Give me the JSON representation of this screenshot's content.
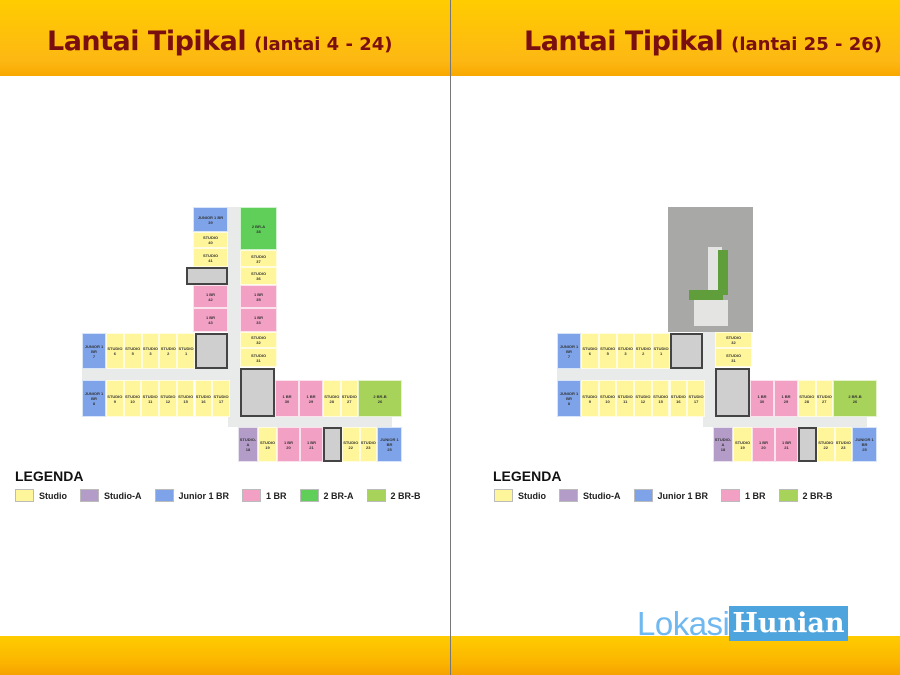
{
  "colors": {
    "studio": "#fff59a",
    "studio-a": "#b39dc8",
    "junior": "#7ea3e8",
    "1br": "#f2a0c4",
    "2br-a": "#5fcf5a",
    "2br-b": "#a8d35a",
    "header": "#fdb813",
    "title": "#7a0f0f"
  },
  "plans": [
    {
      "title": "Lantai Tipikal",
      "subtitle": "(lantai 4 - 24)",
      "legend_title": "LEGENDA",
      "legend": [
        {
          "label": "Studio",
          "type": "studio"
        },
        {
          "label": "Studio-A",
          "type": "studio-a"
        },
        {
          "label": "Junior 1 BR",
          "type": "junior"
        },
        {
          "label": "1 BR",
          "type": "1br"
        },
        {
          "label": "2 BR-A",
          "type": "2br-a"
        },
        {
          "label": "2 BR-B",
          "type": "2br-b"
        }
      ],
      "units": [
        {
          "label": "JUNIOR 1 BR",
          "num": "39",
          "type": "junior"
        },
        {
          "label": "STUDIO",
          "num": "40",
          "type": "studio"
        },
        {
          "label": "STUDIO",
          "num": "41",
          "type": "studio"
        },
        {
          "label": "1 BR",
          "num": "42",
          "type": "1br"
        },
        {
          "label": "1 BR",
          "num": "43",
          "type": "1br"
        },
        {
          "label": "2 BR-A",
          "num": "38",
          "type": "2br-a"
        },
        {
          "label": "STUDIO",
          "num": "37",
          "type": "studio"
        },
        {
          "label": "STUDIO",
          "num": "36",
          "type": "studio"
        },
        {
          "label": "1 BR",
          "num": "35",
          "type": "1br"
        },
        {
          "label": "1 BR",
          "num": "33",
          "type": "1br"
        },
        {
          "label": "STUDIO",
          "num": "32",
          "type": "studio"
        },
        {
          "label": "STUDIO",
          "num": "31",
          "type": "studio"
        },
        {
          "label": "JUNIOR 1 BR",
          "num": "7",
          "type": "junior"
        },
        {
          "label": "STUDIO",
          "num": "6",
          "type": "studio"
        },
        {
          "label": "STUDIO",
          "num": "5",
          "type": "studio"
        },
        {
          "label": "STUDIO",
          "num": "3",
          "type": "studio"
        },
        {
          "label": "STUDIO",
          "num": "2",
          "type": "studio"
        },
        {
          "label": "STUDIO",
          "num": "1",
          "type": "studio"
        },
        {
          "label": "JUNIOR 1 BR",
          "num": "8",
          "type": "junior"
        },
        {
          "label": "STUDIO",
          "num": "9",
          "type": "studio"
        },
        {
          "label": "STUDIO",
          "num": "10",
          "type": "studio"
        },
        {
          "label": "STUDIO",
          "num": "11",
          "type": "studio"
        },
        {
          "label": "STUDIO",
          "num": "12",
          "type": "studio"
        },
        {
          "label": "STUDIO",
          "num": "15",
          "type": "studio"
        },
        {
          "label": "STUDIO",
          "num": "16",
          "type": "studio"
        },
        {
          "label": "STUDIO",
          "num": "17",
          "type": "studio"
        },
        {
          "label": "1 BR",
          "num": "30",
          "type": "1br"
        },
        {
          "label": "1 BR",
          "num": "29",
          "type": "1br"
        },
        {
          "label": "STUDIO",
          "num": "28",
          "type": "studio"
        },
        {
          "label": "STUDIO",
          "num": "27",
          "type": "studio"
        },
        {
          "label": "2 BR-B",
          "num": "26",
          "type": "2br-b"
        },
        {
          "label": "STUDIO-A",
          "num": "18",
          "type": "studio-a"
        },
        {
          "label": "STUDIO",
          "num": "19",
          "type": "studio"
        },
        {
          "label": "1 BR",
          "num": "20",
          "type": "1br"
        },
        {
          "label": "1 BR",
          "num": "21",
          "type": "1br"
        },
        {
          "label": "STUDIO",
          "num": "22",
          "type": "studio"
        },
        {
          "label": "STUDIO",
          "num": "23",
          "type": "studio"
        },
        {
          "label": "JUNIOR 1 BR",
          "num": "25",
          "type": "junior"
        }
      ]
    },
    {
      "title": "Lantai Tipikal",
      "subtitle": "(lantai 25 - 26)",
      "legend_title": "LEGENDA",
      "legend": [
        {
          "label": "Studio",
          "type": "studio"
        },
        {
          "label": "Studio-A",
          "type": "studio-a"
        },
        {
          "label": "Junior 1 BR",
          "type": "junior"
        },
        {
          "label": "1 BR",
          "type": "1br"
        },
        {
          "label": "2 BR-B",
          "type": "2br-b"
        }
      ],
      "units": [
        {
          "label": "STUDIO",
          "num": "32",
          "type": "studio"
        },
        {
          "label": "STUDIO",
          "num": "31",
          "type": "studio"
        },
        {
          "label": "JUNIOR 1 BR",
          "num": "7",
          "type": "junior"
        },
        {
          "label": "STUDIO",
          "num": "6",
          "type": "studio"
        },
        {
          "label": "STUDIO",
          "num": "5",
          "type": "studio"
        },
        {
          "label": "STUDIO",
          "num": "3",
          "type": "studio"
        },
        {
          "label": "STUDIO",
          "num": "2",
          "type": "studio"
        },
        {
          "label": "STUDIO",
          "num": "1",
          "type": "studio"
        },
        {
          "label": "JUNIOR 1 BR",
          "num": "8",
          "type": "junior"
        },
        {
          "label": "STUDIO",
          "num": "9",
          "type": "studio"
        },
        {
          "label": "STUDIO",
          "num": "10",
          "type": "studio"
        },
        {
          "label": "STUDIO",
          "num": "11",
          "type": "studio"
        },
        {
          "label": "STUDIO",
          "num": "12",
          "type": "studio"
        },
        {
          "label": "STUDIO",
          "num": "15",
          "type": "studio"
        },
        {
          "label": "STUDIO",
          "num": "16",
          "type": "studio"
        },
        {
          "label": "STUDIO",
          "num": "17",
          "type": "studio"
        },
        {
          "label": "1 BR",
          "num": "30",
          "type": "1br"
        },
        {
          "label": "1 BR",
          "num": "29",
          "type": "1br"
        },
        {
          "label": "STUDIO",
          "num": "28",
          "type": "studio"
        },
        {
          "label": "STUDIO",
          "num": "27",
          "type": "studio"
        },
        {
          "label": "2 BR-B",
          "num": "26",
          "type": "2br-b"
        },
        {
          "label": "STUDIO-A",
          "num": "18",
          "type": "studio-a"
        },
        {
          "label": "STUDIO",
          "num": "19",
          "type": "studio"
        },
        {
          "label": "1 BR",
          "num": "20",
          "type": "1br"
        },
        {
          "label": "1 BR",
          "num": "21",
          "type": "1br"
        },
        {
          "label": "STUDIO",
          "num": "22",
          "type": "studio"
        },
        {
          "label": "STUDIO",
          "num": "23",
          "type": "studio"
        },
        {
          "label": "JUNIOR 1 BR",
          "num": "25",
          "type": "junior"
        }
      ]
    }
  ],
  "watermark": {
    "part1": "Lokasi",
    "part2": "Hunian"
  }
}
